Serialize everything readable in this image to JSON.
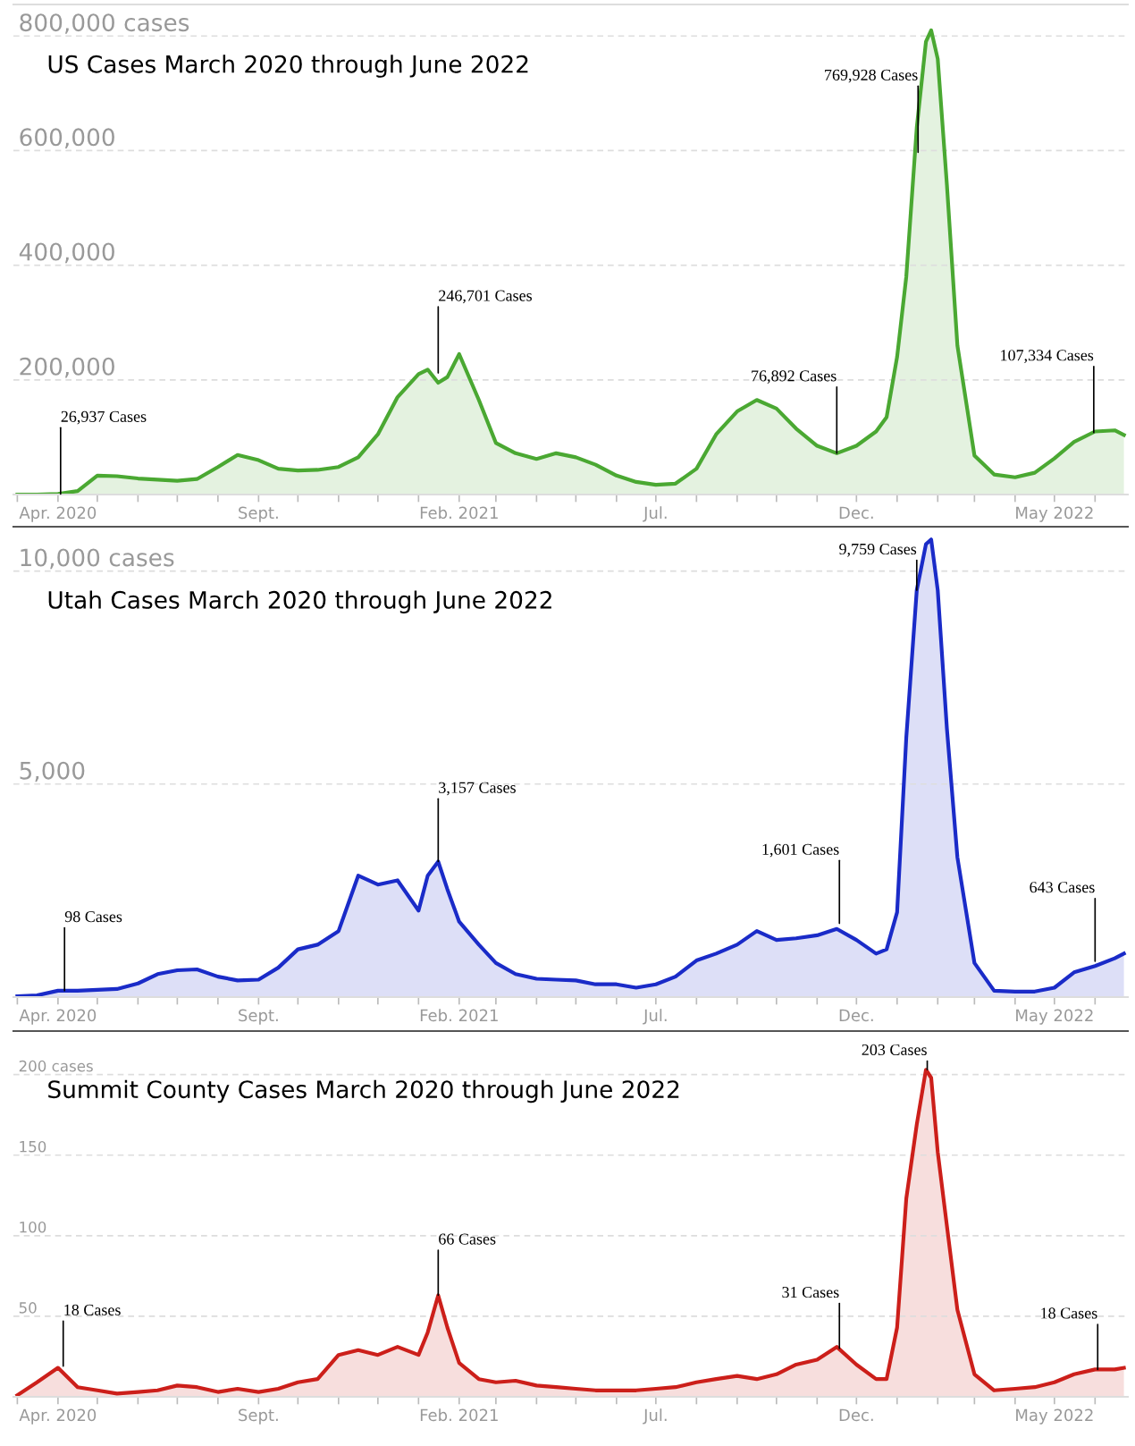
{
  "chart_data": [
    {
      "type": "area",
      "title": "US Cases March 2020 through June 2022",
      "x": [
        "2020-03-01",
        "2020-03-16",
        "2020-04-01",
        "2020-04-16",
        "2020-05-01",
        "2020-05-16",
        "2020-06-01",
        "2020-06-16",
        "2020-07-01",
        "2020-07-16",
        "2020-08-01",
        "2020-08-16",
        "2020-09-01",
        "2020-09-16",
        "2020-10-01",
        "2020-10-16",
        "2020-11-01",
        "2020-11-16",
        "2020-12-01",
        "2020-12-16",
        "2021-01-01",
        "2021-01-08",
        "2021-01-16",
        "2021-01-23",
        "2021-02-01",
        "2021-02-16",
        "2021-03-01",
        "2021-03-16",
        "2021-04-01",
        "2021-04-16",
        "2021-05-01",
        "2021-05-16",
        "2021-06-01",
        "2021-06-16",
        "2021-07-01",
        "2021-07-16",
        "2021-08-01",
        "2021-08-16",
        "2021-09-01",
        "2021-09-16",
        "2021-10-01",
        "2021-10-16",
        "2021-11-01",
        "2021-11-16",
        "2021-12-01",
        "2021-12-16",
        "2021-12-24",
        "2022-01-01",
        "2022-01-08",
        "2022-01-16",
        "2022-01-23",
        "2022-01-27",
        "2022-02-01",
        "2022-02-08",
        "2022-02-16",
        "2022-03-01",
        "2022-03-16",
        "2022-04-01",
        "2022-04-16",
        "2022-05-01",
        "2022-05-16",
        "2022-06-01",
        "2022-06-16",
        "2022-06-23"
      ],
      "values": [
        0,
        0,
        1000,
        6000,
        33000,
        32000,
        28000,
        26000,
        24000,
        27000,
        48000,
        69000,
        60000,
        45000,
        42000,
        43000,
        48000,
        65000,
        105000,
        170000,
        210000,
        218000,
        195000,
        205000,
        245000,
        165000,
        90000,
        72000,
        62000,
        72000,
        65000,
        52000,
        33000,
        22000,
        17000,
        19000,
        45000,
        105000,
        145000,
        165000,
        150000,
        115000,
        85000,
        72000,
        85000,
        110000,
        135000,
        240000,
        380000,
        640000,
        790000,
        810000,
        760000,
        540000,
        260000,
        68000,
        35000,
        30000,
        38000,
        63000,
        92000,
        110000,
        112000,
        104000
      ],
      "color": "#4aa832",
      "xlim": [
        "2020-02-27",
        "2022-06-26"
      ],
      "xticks": [
        {
          "value": "2020-03-01",
          "label": null
        },
        {
          "value": "2020-04-01",
          "label": "Apr. 2020"
        },
        {
          "value": "2020-05-01",
          "label": null
        },
        {
          "value": "2020-06-01",
          "label": null
        },
        {
          "value": "2020-07-01",
          "label": null
        },
        {
          "value": "2020-08-01",
          "label": null
        },
        {
          "value": "2020-09-01",
          "label": "Sept."
        },
        {
          "value": "2020-10-01",
          "label": null
        },
        {
          "value": "2020-11-01",
          "label": null
        },
        {
          "value": "2020-12-01",
          "label": null
        },
        {
          "value": "2021-01-01",
          "label": null
        },
        {
          "value": "2021-02-01",
          "label": "Feb. 2021"
        },
        {
          "value": "2021-03-01",
          "label": null
        },
        {
          "value": "2021-04-01",
          "label": null
        },
        {
          "value": "2021-05-01",
          "label": null
        },
        {
          "value": "2021-06-01",
          "label": null
        },
        {
          "value": "2021-07-01",
          "label": "Jul."
        },
        {
          "value": "2021-08-01",
          "label": null
        },
        {
          "value": "2021-09-01",
          "label": null
        },
        {
          "value": "2021-10-01",
          "label": null
        },
        {
          "value": "2021-11-01",
          "label": null
        },
        {
          "value": "2021-12-01",
          "label": "Dec."
        },
        {
          "value": "2022-01-01",
          "label": null
        },
        {
          "value": "2022-02-01",
          "label": null
        },
        {
          "value": "2022-03-01",
          "label": null
        },
        {
          "value": "2022-04-01",
          "label": null
        },
        {
          "value": "2022-05-01",
          "label": "May 2022"
        },
        {
          "value": "2022-06-01",
          "label": null
        }
      ],
      "ylim": [
        0,
        855000
      ],
      "yticks": [
        {
          "value": 200000,
          "label": "200,000"
        },
        {
          "value": 400000,
          "label": "400,000"
        },
        {
          "value": 600000,
          "label": "600,000"
        },
        {
          "value": 800000,
          "label": "800,000 cases"
        }
      ],
      "grid": "y",
      "annotations": [
        {
          "text": "26,937 Cases",
          "x": "2020-04-03",
          "y": 1000
        },
        {
          "text": "246,701 Cases",
          "x": "2021-01-16",
          "y": 212000
        },
        {
          "text": "76,892 Cases",
          "x": "2021-11-16",
          "y": 72000
        },
        {
          "text": "769,928 Cases",
          "x": "2022-01-17",
          "y": 597000
        },
        {
          "text": "107,334 Cases",
          "x": "2022-05-31",
          "y": 108000
        }
      ]
    },
    {
      "type": "area",
      "title": "Utah Cases March 2020 through June 2022",
      "x": [
        "2020-03-01",
        "2020-03-16",
        "2020-04-01",
        "2020-04-16",
        "2020-05-01",
        "2020-05-16",
        "2020-06-01",
        "2020-06-16",
        "2020-07-01",
        "2020-07-16",
        "2020-08-01",
        "2020-08-16",
        "2020-09-01",
        "2020-09-16",
        "2020-10-01",
        "2020-10-16",
        "2020-11-01",
        "2020-11-16",
        "2020-12-01",
        "2020-12-16",
        "2021-01-01",
        "2021-01-08",
        "2021-01-16",
        "2021-01-23",
        "2021-02-01",
        "2021-02-16",
        "2021-03-01",
        "2021-03-16",
        "2021-04-01",
        "2021-04-16",
        "2021-05-01",
        "2021-05-16",
        "2021-06-01",
        "2021-06-16",
        "2021-07-01",
        "2021-07-16",
        "2021-08-01",
        "2021-08-16",
        "2021-09-01",
        "2021-09-16",
        "2021-10-01",
        "2021-10-16",
        "2021-11-01",
        "2021-11-16",
        "2021-12-01",
        "2021-12-16",
        "2021-12-24",
        "2022-01-01",
        "2022-01-08",
        "2022-01-16",
        "2022-01-23",
        "2022-01-27",
        "2022-02-01",
        "2022-02-08",
        "2022-02-16",
        "2022-03-01",
        "2022-03-16",
        "2022-04-01",
        "2022-04-16",
        "2022-05-01",
        "2022-05-16",
        "2022-06-01",
        "2022-06-16",
        "2022-06-23"
      ],
      "values": [
        20,
        40,
        150,
        150,
        170,
        190,
        320,
        540,
        630,
        650,
        480,
        390,
        410,
        690,
        1120,
        1230,
        1550,
        2850,
        2640,
        2740,
        2030,
        2850,
        3180,
        2530,
        1770,
        1230,
        800,
        540,
        430,
        410,
        390,
        300,
        300,
        220,
        300,
        480,
        860,
        1020,
        1230,
        1550,
        1340,
        1380,
        1450,
        1600,
        1340,
        1020,
        1120,
        1990,
        6090,
        9550,
        10630,
        10740,
        9550,
        6300,
        3280,
        800,
        150,
        130,
        130,
        220,
        580,
        730,
        910,
        1020
      ],
      "color": "#1a2bc8",
      "xlim": [
        "2020-02-27",
        "2022-06-26"
      ],
      "xticks": [
        {
          "value": "2020-03-01",
          "label": null
        },
        {
          "value": "2020-04-01",
          "label": "Apr. 2020"
        },
        {
          "value": "2020-05-01",
          "label": null
        },
        {
          "value": "2020-06-01",
          "label": null
        },
        {
          "value": "2020-07-01",
          "label": null
        },
        {
          "value": "2020-08-01",
          "label": null
        },
        {
          "value": "2020-09-01",
          "label": "Sept."
        },
        {
          "value": "2020-10-01",
          "label": null
        },
        {
          "value": "2020-11-01",
          "label": null
        },
        {
          "value": "2020-12-01",
          "label": null
        },
        {
          "value": "2021-01-01",
          "label": null
        },
        {
          "value": "2021-02-01",
          "label": "Feb. 2021"
        },
        {
          "value": "2021-03-01",
          "label": null
        },
        {
          "value": "2021-04-01",
          "label": null
        },
        {
          "value": "2021-05-01",
          "label": null
        },
        {
          "value": "2021-06-01",
          "label": null
        },
        {
          "value": "2021-07-01",
          "label": "Jul."
        },
        {
          "value": "2021-08-01",
          "label": null
        },
        {
          "value": "2021-09-01",
          "label": null
        },
        {
          "value": "2021-10-01",
          "label": null
        },
        {
          "value": "2021-11-01",
          "label": null
        },
        {
          "value": "2021-12-01",
          "label": "Dec."
        },
        {
          "value": "2022-01-01",
          "label": null
        },
        {
          "value": "2022-02-01",
          "label": null
        },
        {
          "value": "2022-03-01",
          "label": null
        },
        {
          "value": "2022-04-01",
          "label": null
        },
        {
          "value": "2022-05-01",
          "label": "May 2022"
        },
        {
          "value": "2022-06-01",
          "label": null
        }
      ],
      "ylim": [
        0,
        11040
      ],
      "yticks": [
        {
          "value": 5000,
          "label": "5,000"
        },
        {
          "value": 10000,
          "label": "10,000 cases"
        }
      ],
      "grid": "y",
      "annotations": [
        {
          "text": "98 Cases",
          "x": "2020-04-06",
          "y": 150
        },
        {
          "text": "3,157 Cases",
          "x": "2021-01-16",
          "y": 3180
        },
        {
          "text": "1,601 Cases",
          "x": "2021-11-18",
          "y": 1730
        },
        {
          "text": "9,759 Cases",
          "x": "2022-01-16",
          "y": 9550
        },
        {
          "text": "643 Cases",
          "x": "2022-06-01",
          "y": 840
        }
      ]
    },
    {
      "type": "area",
      "title": "Summit County Cases March 2020 through June 2022",
      "x": [
        "2020-03-01",
        "2020-03-16",
        "2020-04-01",
        "2020-04-16",
        "2020-05-01",
        "2020-05-16",
        "2020-06-01",
        "2020-06-16",
        "2020-07-01",
        "2020-07-16",
        "2020-08-01",
        "2020-08-16",
        "2020-09-01",
        "2020-09-16",
        "2020-10-01",
        "2020-10-16",
        "2020-11-01",
        "2020-11-16",
        "2020-12-01",
        "2020-12-16",
        "2021-01-01",
        "2021-01-08",
        "2021-01-16",
        "2021-01-23",
        "2021-02-01",
        "2021-02-16",
        "2021-03-01",
        "2021-03-16",
        "2021-04-01",
        "2021-04-16",
        "2021-05-01",
        "2021-05-16",
        "2021-06-01",
        "2021-06-16",
        "2021-07-01",
        "2021-07-16",
        "2021-08-01",
        "2021-08-16",
        "2021-09-01",
        "2021-09-16",
        "2021-10-01",
        "2021-10-16",
        "2021-11-01",
        "2021-11-16",
        "2021-12-01",
        "2021-12-16",
        "2021-12-24",
        "2022-01-01",
        "2022-01-08",
        "2022-01-16",
        "2022-01-23",
        "2022-01-27",
        "2022-02-01",
        "2022-02-08",
        "2022-02-16",
        "2022-03-01",
        "2022-03-16",
        "2022-04-01",
        "2022-04-16",
        "2022-05-01",
        "2022-05-16",
        "2022-06-01",
        "2022-06-16",
        "2022-06-23"
      ],
      "values": [
        1,
        9,
        18,
        6,
        4,
        2,
        3,
        4,
        7,
        6,
        3,
        5,
        3,
        5,
        9,
        11,
        26,
        29,
        26,
        31,
        26,
        40,
        63,
        43,
        21,
        11,
        9,
        10,
        7,
        6,
        5,
        4,
        4,
        4,
        5,
        6,
        9,
        11,
        13,
        11,
        14,
        20,
        23,
        31,
        20,
        11,
        11,
        43,
        123,
        169,
        203,
        198,
        152,
        106,
        54,
        14,
        4,
        5,
        6,
        9,
        14,
        17,
        17,
        18
      ],
      "color": "#cc1f1a",
      "xlim": [
        "2020-02-27",
        "2022-06-26"
      ],
      "xticks": [
        {
          "value": "2020-03-01",
          "label": null
        },
        {
          "value": "2020-04-01",
          "label": "Apr. 2020"
        },
        {
          "value": "2020-05-01",
          "label": null
        },
        {
          "value": "2020-06-01",
          "label": null
        },
        {
          "value": "2020-07-01",
          "label": null
        },
        {
          "value": "2020-08-01",
          "label": null
        },
        {
          "value": "2020-09-01",
          "label": "Sept."
        },
        {
          "value": "2020-10-01",
          "label": null
        },
        {
          "value": "2020-11-01",
          "label": null
        },
        {
          "value": "2020-12-01",
          "label": null
        },
        {
          "value": "2021-01-01",
          "label": null
        },
        {
          "value": "2021-02-01",
          "label": "Feb. 2021"
        },
        {
          "value": "2021-03-01",
          "label": null
        },
        {
          "value": "2021-04-01",
          "label": null
        },
        {
          "value": "2021-05-01",
          "label": null
        },
        {
          "value": "2021-06-01",
          "label": null
        },
        {
          "value": "2021-07-01",
          "label": "Jul."
        },
        {
          "value": "2021-08-01",
          "label": null
        },
        {
          "value": "2021-09-01",
          "label": null
        },
        {
          "value": "2021-10-01",
          "label": null
        },
        {
          "value": "2021-11-01",
          "label": null
        },
        {
          "value": "2021-12-01",
          "label": "Dec."
        },
        {
          "value": "2022-01-01",
          "label": null
        },
        {
          "value": "2022-02-01",
          "label": null
        },
        {
          "value": "2022-03-01",
          "label": null
        },
        {
          "value": "2022-04-01",
          "label": null
        },
        {
          "value": "2022-05-01",
          "label": "May 2022"
        },
        {
          "value": "2022-06-01",
          "label": null
        }
      ],
      "ylim": [
        0,
        227
      ],
      "yticks": [
        {
          "value": 50,
          "label": "50"
        },
        {
          "value": 100,
          "label": "100"
        },
        {
          "value": 150,
          "label": "150"
        },
        {
          "value": 200,
          "label": "200 cases"
        }
      ],
      "grid": "y",
      "annotations": [
        {
          "text": "18 Cases",
          "x": "2020-04-05",
          "y": 19
        },
        {
          "text": "66 Cases",
          "x": "2021-01-16",
          "y": 63
        },
        {
          "text": "31 Cases",
          "x": "2021-11-18",
          "y": 30
        },
        {
          "text": "203 Cases",
          "x": "2022-01-24",
          "y": 203
        },
        {
          "text": "18 Cases",
          "x": "2022-06-03",
          "y": 17
        }
      ]
    }
  ]
}
